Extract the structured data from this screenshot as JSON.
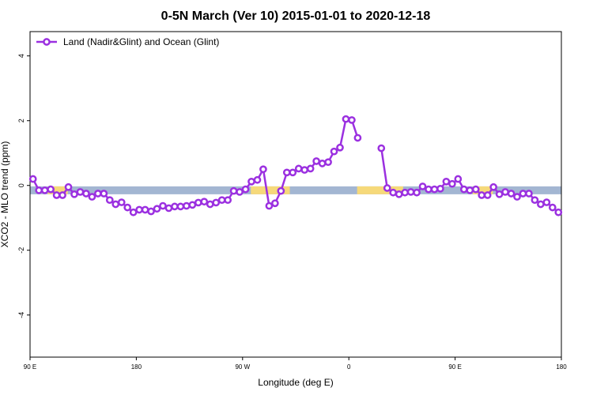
{
  "chart_data": {
    "type": "line",
    "title": "0-5N March (Ver 10)   2015-01-01 to 2020-12-18",
    "xlabel": "Longitude (deg E)",
    "ylabel": "XCO2 - MLO trend (ppm)",
    "x": [
      92.5,
      97.5,
      102.5,
      107.5,
      112.5,
      117.5,
      122.5,
      127.5,
      132.5,
      137.5,
      142.5,
      147.5,
      152.5,
      157.5,
      162.5,
      167.5,
      172.5,
      177.5,
      182.5,
      187.5,
      192.5,
      197.5,
      202.5,
      207.5,
      212.5,
      217.5,
      222.5,
      227.5,
      232.5,
      237.5,
      242.5,
      247.5,
      252.5,
      257.5,
      262.5,
      267.5,
      272.5,
      277.5,
      282.5,
      287.5,
      292.5,
      297.5,
      302.5,
      307.5,
      312.5,
      317.5,
      322.5,
      327.5,
      332.5,
      337.5,
      342.5,
      347.5,
      352.5,
      357.5,
      362.5,
      367.5,
      372.5,
      377.5,
      382.5,
      387.5,
      392.5,
      397.5,
      402.5,
      407.5,
      412.5,
      417.5,
      422.5,
      427.5,
      432.5,
      437.5,
      442.5,
      447.5,
      452.5,
      457.5,
      462.5,
      467.5,
      472.5,
      477.5,
      482.5,
      487.5,
      492.5,
      497.5,
      502.5,
      507.5,
      512.5,
      517.5,
      522.5,
      527.5,
      532.5,
      537.5
    ],
    "series": [
      {
        "name": "Land (Nadir&Glint) and Ocean (Glint)",
        "color": "#9b30e0",
        "values": [
          0.2,
          -0.15,
          -0.15,
          -0.12,
          -0.3,
          -0.3,
          -0.05,
          -0.27,
          -0.2,
          -0.25,
          -0.35,
          -0.25,
          -0.25,
          -0.45,
          -0.58,
          -0.52,
          -0.68,
          -0.83,
          -0.75,
          -0.75,
          -0.8,
          -0.72,
          -0.63,
          -0.7,
          -0.65,
          -0.65,
          -0.63,
          -0.6,
          -0.53,
          -0.5,
          -0.58,
          -0.53,
          -0.45,
          -0.45,
          -0.17,
          -0.2,
          -0.12,
          0.12,
          0.17,
          0.5,
          -0.63,
          -0.55,
          -0.17,
          0.4,
          0.4,
          0.52,
          0.48,
          0.52,
          0.75,
          0.68,
          0.72,
          1.05,
          1.17,
          2.05,
          2.02,
          1.47,
          null,
          null,
          null,
          1.15,
          -0.08,
          -0.22,
          -0.27,
          -0.22,
          -0.2,
          -0.22,
          -0.03,
          -0.12,
          -0.12,
          -0.1,
          0.12,
          0.05,
          0.2,
          -0.12,
          -0.15,
          -0.12,
          -0.3,
          -0.3,
          -0.05,
          -0.27,
          -0.2,
          -0.25,
          -0.35,
          -0.25,
          -0.25,
          -0.45,
          -0.58,
          -0.52,
          -0.68,
          -0.83
        ]
      }
    ],
    "surface_band": {
      "y": -0.15,
      "ocean_color": "#a3b6d2",
      "land_color": "#f6d97a",
      "land_ranges": [
        [
          105,
          122
        ],
        [
          277,
          310
        ],
        [
          367,
          406
        ],
        [
          465,
          482
        ]
      ]
    },
    "xlim": [
      90,
      540
    ],
    "xticks": [
      {
        "value": 90,
        "label": "90 E"
      },
      {
        "value": 180,
        "label": "180"
      },
      {
        "value": 270,
        "label": "90 W"
      },
      {
        "value": 360,
        "label": "0"
      },
      {
        "value": 450,
        "label": "90 E"
      },
      {
        "value": 540,
        "label": "180"
      }
    ],
    "ylim": [
      -5.3,
      4.75
    ],
    "yticks": [
      -4,
      -2,
      0,
      2,
      4
    ],
    "legend": "top-left"
  }
}
